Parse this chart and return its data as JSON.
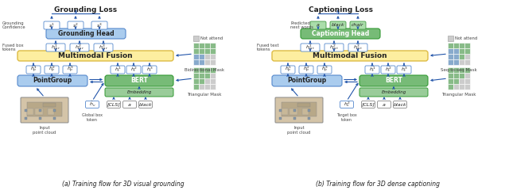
{
  "fig_width": 6.4,
  "fig_height": 2.45,
  "dpi": 100,
  "bg_color": "#ffffff",
  "colors": {
    "blue_box": "#aaccee",
    "blue_box_dark": "#5588cc",
    "yellow_box": "#fdeea0",
    "yellow_box_border": "#ddbb44",
    "green_box": "#77bb77",
    "green_box_light": "#aaddaa",
    "green_embed": "#99cc99",
    "small_box_border": "#5588cc",
    "arrow_color": "#2255aa",
    "mask_blue": "#88aacc",
    "mask_green": "#88bb88",
    "mask_gray": "#cccccc",
    "text_dark": "#222222",
    "white": "#ffffff"
  },
  "caption_left": "(a) Training flow for 3D visual grounding",
  "caption_right": "(b) Training flow for 3D dense captioning",
  "title_left": "Grounding Loss",
  "title_right": "Captioning Loss"
}
